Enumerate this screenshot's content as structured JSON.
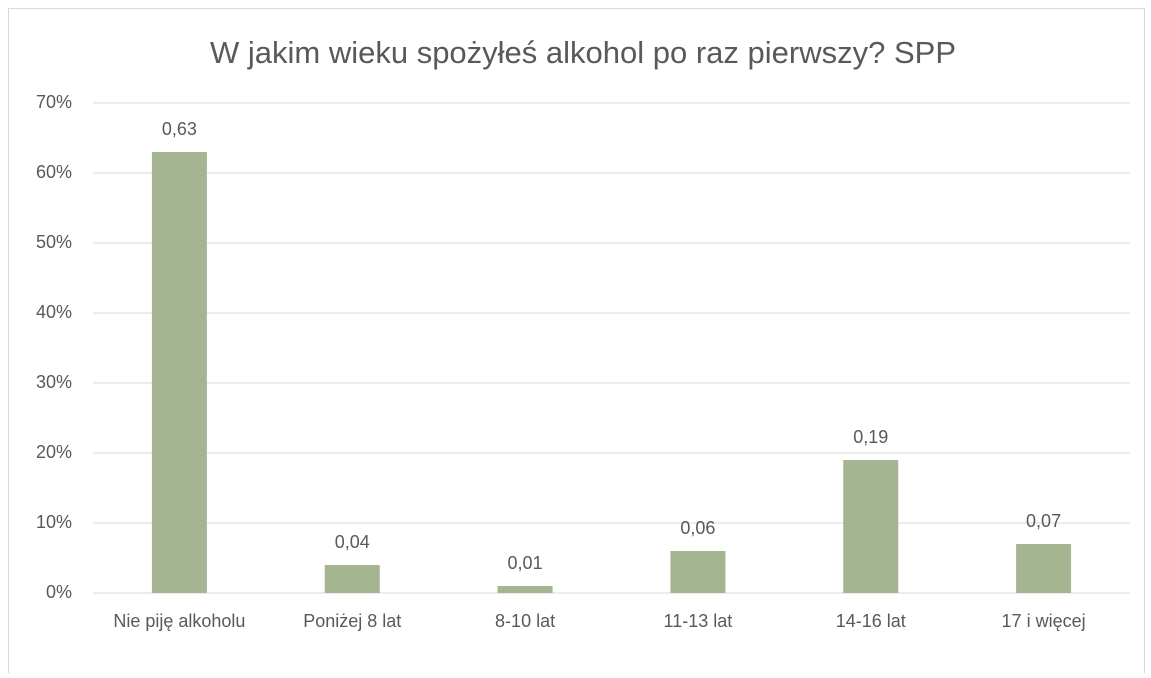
{
  "chart_data": {
    "type": "bar",
    "title": "W jakim wieku spożyłeś alkohol po raz pierwszy? SPP",
    "categories": [
      "Nie piję alkoholu",
      "Poniżej 8 lat",
      "8-10 lat",
      "11-13 lat",
      "14-16 lat",
      "17 i więcej"
    ],
    "values": [
      63,
      4,
      1,
      6,
      19,
      7
    ],
    "value_labels": [
      "0,63",
      "0,04",
      "0,01",
      "0,06",
      "0,19",
      "0,07"
    ],
    "color": "#a5b592",
    "ylim": [
      0,
      70
    ],
    "yticks": [
      {
        "value": 0,
        "label": "0%"
      },
      {
        "value": 10,
        "label": "10%"
      },
      {
        "value": 20,
        "label": "20%"
      },
      {
        "value": 30,
        "label": "30%"
      },
      {
        "value": 40,
        "label": "40%"
      },
      {
        "value": 50,
        "label": "50%"
      },
      {
        "value": 60,
        "label": "60%"
      },
      {
        "value": 70,
        "label": "70%"
      }
    ],
    "grid": true
  }
}
